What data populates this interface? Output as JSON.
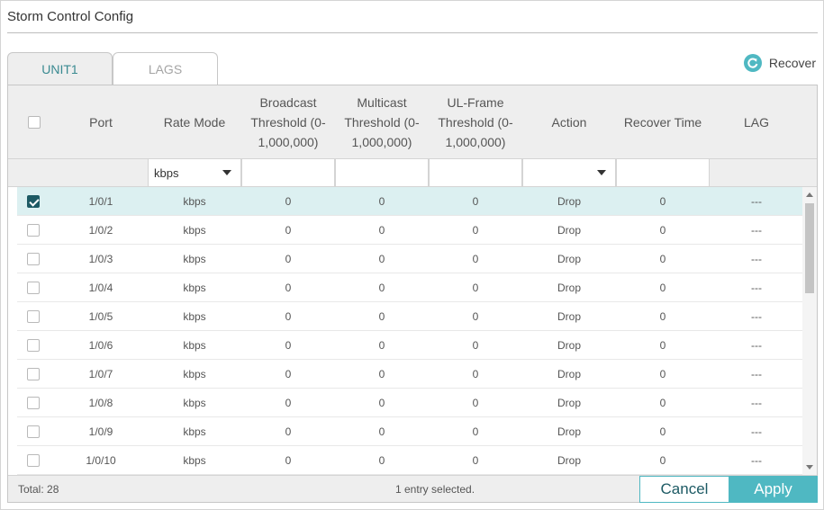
{
  "page": {
    "title": "Storm Control Config"
  },
  "tabs": [
    {
      "label": "UNIT1",
      "active": true
    },
    {
      "label": "LAGS",
      "active": false
    }
  ],
  "recover": {
    "label": "Recover",
    "icon": "refresh-icon"
  },
  "colors": {
    "accent": "#4fb8c2",
    "accent_dark": "#1d5a64",
    "selected_row": "#dcf0f1",
    "header_bg": "#eeeeee"
  },
  "table": {
    "columns": [
      {
        "key": "select",
        "label": ""
      },
      {
        "key": "port",
        "label": "Port"
      },
      {
        "key": "rate_mode",
        "label": "Rate Mode"
      },
      {
        "key": "broadcast",
        "label": "Broadcast Threshold (0-1,000,000)"
      },
      {
        "key": "multicast",
        "label": "Multicast Threshold (0-1,000,000)"
      },
      {
        "key": "ul_frame",
        "label": "UL-Frame Threshold (0-1,000,000)"
      },
      {
        "key": "action",
        "label": "Action"
      },
      {
        "key": "recover_time",
        "label": "Recover Time"
      },
      {
        "key": "lag",
        "label": "LAG"
      }
    ],
    "header_lines": {
      "broadcast": [
        "Broadcast",
        "Threshold (0-",
        "1,000,000)"
      ],
      "multicast": [
        "Multicast",
        "Threshold (0-",
        "1,000,000)"
      ],
      "ul_frame": [
        "UL-Frame",
        "Threshold (0-",
        "1,000,000)"
      ]
    },
    "filter": {
      "rate_mode_value": "kbps",
      "broadcast_value": "",
      "multicast_value": "",
      "ul_frame_value": "",
      "action_value": "",
      "recover_time_value": ""
    },
    "rows": [
      {
        "checked": true,
        "port": "1/0/1",
        "rate_mode": "kbps",
        "broadcast": "0",
        "multicast": "0",
        "ul_frame": "0",
        "action": "Drop",
        "recover_time": "0",
        "lag": "---"
      },
      {
        "checked": false,
        "port": "1/0/2",
        "rate_mode": "kbps",
        "broadcast": "0",
        "multicast": "0",
        "ul_frame": "0",
        "action": "Drop",
        "recover_time": "0",
        "lag": "---"
      },
      {
        "checked": false,
        "port": "1/0/3",
        "rate_mode": "kbps",
        "broadcast": "0",
        "multicast": "0",
        "ul_frame": "0",
        "action": "Drop",
        "recover_time": "0",
        "lag": "---"
      },
      {
        "checked": false,
        "port": "1/0/4",
        "rate_mode": "kbps",
        "broadcast": "0",
        "multicast": "0",
        "ul_frame": "0",
        "action": "Drop",
        "recover_time": "0",
        "lag": "---"
      },
      {
        "checked": false,
        "port": "1/0/5",
        "rate_mode": "kbps",
        "broadcast": "0",
        "multicast": "0",
        "ul_frame": "0",
        "action": "Drop",
        "recover_time": "0",
        "lag": "---"
      },
      {
        "checked": false,
        "port": "1/0/6",
        "rate_mode": "kbps",
        "broadcast": "0",
        "multicast": "0",
        "ul_frame": "0",
        "action": "Drop",
        "recover_time": "0",
        "lag": "---"
      },
      {
        "checked": false,
        "port": "1/0/7",
        "rate_mode": "kbps",
        "broadcast": "0",
        "multicast": "0",
        "ul_frame": "0",
        "action": "Drop",
        "recover_time": "0",
        "lag": "---"
      },
      {
        "checked": false,
        "port": "1/0/8",
        "rate_mode": "kbps",
        "broadcast": "0",
        "multicast": "0",
        "ul_frame": "0",
        "action": "Drop",
        "recover_time": "0",
        "lag": "---"
      },
      {
        "checked": false,
        "port": "1/0/9",
        "rate_mode": "kbps",
        "broadcast": "0",
        "multicast": "0",
        "ul_frame": "0",
        "action": "Drop",
        "recover_time": "0",
        "lag": "---"
      },
      {
        "checked": false,
        "port": "1/0/10",
        "rate_mode": "kbps",
        "broadcast": "0",
        "multicast": "0",
        "ul_frame": "0",
        "action": "Drop",
        "recover_time": "0",
        "lag": "---"
      }
    ]
  },
  "footer": {
    "total": "Total: 28",
    "selected": "1 entry selected.",
    "cancel_label": "Cancel",
    "apply_label": "Apply"
  }
}
